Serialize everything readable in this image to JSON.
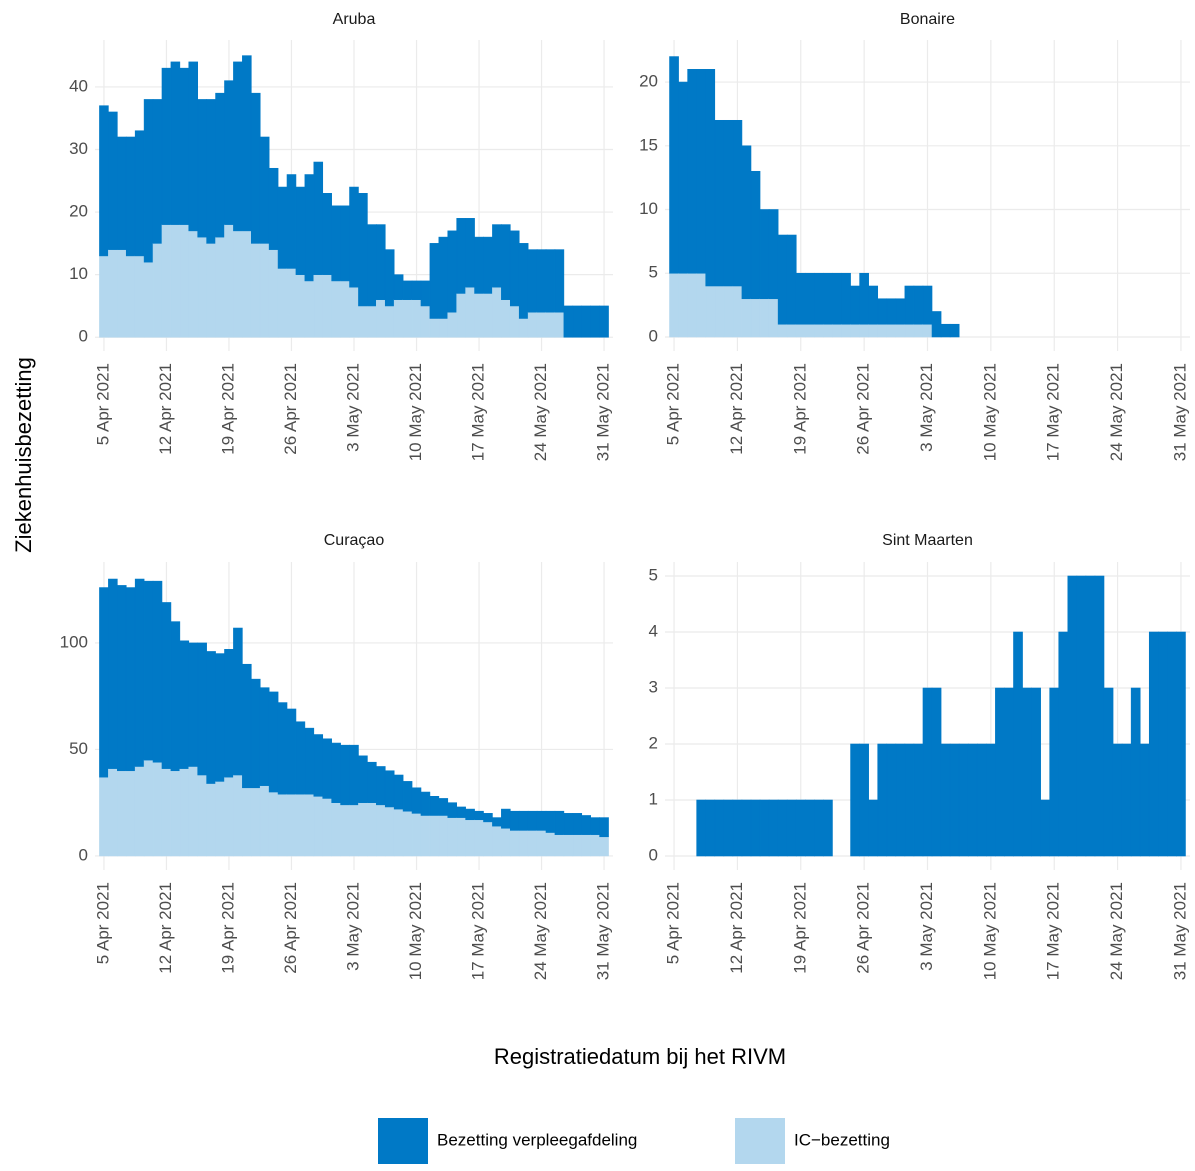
{
  "y_label": "Ziekenhuisbezetting",
  "x_label": "Registratiedatum bij het RIVM",
  "chart_data": [
    {
      "type": "bar",
      "stacked": true,
      "title": "Aruba",
      "grid": true,
      "x": [
        "2021-04-05",
        "2021-04-06",
        "2021-04-07",
        "2021-04-08",
        "2021-04-09",
        "2021-04-10",
        "2021-04-11",
        "2021-04-12",
        "2021-04-13",
        "2021-04-14",
        "2021-04-15",
        "2021-04-16",
        "2021-04-17",
        "2021-04-18",
        "2021-04-19",
        "2021-04-20",
        "2021-04-21",
        "2021-04-22",
        "2021-04-23",
        "2021-04-24",
        "2021-04-25",
        "2021-04-26",
        "2021-04-27",
        "2021-04-28",
        "2021-04-29",
        "2021-04-30",
        "2021-05-01",
        "2021-05-02",
        "2021-05-03",
        "2021-05-04",
        "2021-05-05",
        "2021-05-06",
        "2021-05-07",
        "2021-05-08",
        "2021-05-09",
        "2021-05-10",
        "2021-05-11",
        "2021-05-12",
        "2021-05-13",
        "2021-05-14",
        "2021-05-15",
        "2021-05-16",
        "2021-05-17",
        "2021-05-18",
        "2021-05-19",
        "2021-05-20",
        "2021-05-21",
        "2021-05-22",
        "2021-05-23",
        "2021-05-24",
        "2021-05-25",
        "2021-05-26",
        "2021-05-27",
        "2021-05-28",
        "2021-05-29",
        "2021-05-30",
        "2021-05-31"
      ],
      "xlim": [
        "2021-04-04",
        "2021-06-01"
      ],
      "xticks": [
        {
          "value": "2021-04-05",
          "label": "5 Apr 2021"
        },
        {
          "value": "2021-04-12",
          "label": "12 Apr 2021"
        },
        {
          "value": "2021-04-19",
          "label": "19 Apr 2021"
        },
        {
          "value": "2021-04-26",
          "label": "26 Apr 2021"
        },
        {
          "value": "2021-05-03",
          "label": "3 May 2021"
        },
        {
          "value": "2021-05-10",
          "label": "10 May 2021"
        },
        {
          "value": "2021-05-17",
          "label": "17 May 2021"
        },
        {
          "value": "2021-05-24",
          "label": "24 May 2021"
        },
        {
          "value": "2021-05-31",
          "label": "31 May 2021"
        }
      ],
      "ylim": [
        -2.2,
        47.5
      ],
      "yticks": [
        0,
        10,
        20,
        30,
        40
      ],
      "series": [
        {
          "name": "IC−bezetting",
          "color": "#b3d7ee",
          "values": [
            13,
            14,
            14,
            13,
            13,
            12,
            15,
            18,
            18,
            18,
            17,
            16,
            15,
            16,
            18,
            17,
            17,
            15,
            15,
            14,
            11,
            11,
            10,
            9,
            10,
            10,
            9,
            9,
            8,
            5,
            5,
            6,
            5,
            6,
            6,
            6,
            5,
            3,
            3,
            4,
            7,
            8,
            7,
            7,
            8,
            6,
            5,
            3,
            4,
            4,
            4,
            4,
            0,
            0,
            0,
            0,
            0
          ]
        },
        {
          "name": "Bezetting verpleegafdeling",
          "color": "#0079c6",
          "values": [
            24,
            22,
            18,
            19,
            20,
            26,
            23,
            25,
            26,
            25,
            27,
            22,
            23,
            23,
            23,
            27,
            28,
            24,
            17,
            13,
            13,
            15,
            14,
            17,
            18,
            13,
            12,
            12,
            16,
            18,
            13,
            12,
            9,
            4,
            3,
            3,
            4,
            12,
            13,
            13,
            12,
            11,
            9,
            9,
            10,
            12,
            12,
            12,
            10,
            10,
            10,
            10,
            5,
            5,
            5,
            5,
            5
          ]
        }
      ]
    },
    {
      "type": "bar",
      "stacked": true,
      "title": "Bonaire",
      "grid": true,
      "x": [
        "2021-04-05",
        "2021-04-06",
        "2021-04-07",
        "2021-04-08",
        "2021-04-09",
        "2021-04-10",
        "2021-04-11",
        "2021-04-12",
        "2021-04-13",
        "2021-04-14",
        "2021-04-15",
        "2021-04-16",
        "2021-04-17",
        "2021-04-18",
        "2021-04-19",
        "2021-04-20",
        "2021-04-21",
        "2021-04-22",
        "2021-04-23",
        "2021-04-24",
        "2021-04-25",
        "2021-04-26",
        "2021-04-27",
        "2021-04-28",
        "2021-04-29",
        "2021-04-30",
        "2021-05-01",
        "2021-05-02",
        "2021-05-03",
        "2021-05-04",
        "2021-05-05",
        "2021-05-06",
        "2021-05-07",
        "2021-05-08",
        "2021-05-09",
        "2021-05-10",
        "2021-05-11",
        "2021-05-12",
        "2021-05-13",
        "2021-05-14",
        "2021-05-15",
        "2021-05-16",
        "2021-05-17",
        "2021-05-18",
        "2021-05-19",
        "2021-05-20",
        "2021-05-21",
        "2021-05-22",
        "2021-05-23",
        "2021-05-24",
        "2021-05-25",
        "2021-05-26",
        "2021-05-27",
        "2021-05-28",
        "2021-05-29",
        "2021-05-30",
        "2021-05-31"
      ],
      "xlim": [
        "2021-04-04",
        "2021-06-01"
      ],
      "xticks": [
        {
          "value": "2021-04-05",
          "label": "5 Apr 2021"
        },
        {
          "value": "2021-04-12",
          "label": "12 Apr 2021"
        },
        {
          "value": "2021-04-19",
          "label": "19 Apr 2021"
        },
        {
          "value": "2021-04-26",
          "label": "26 Apr 2021"
        },
        {
          "value": "2021-05-03",
          "label": "3 May 2021"
        },
        {
          "value": "2021-05-10",
          "label": "10 May 2021"
        },
        {
          "value": "2021-05-17",
          "label": "17 May 2021"
        },
        {
          "value": "2021-05-24",
          "label": "24 May 2021"
        },
        {
          "value": "2021-05-31",
          "label": "31 May 2021"
        }
      ],
      "ylim": [
        -1.1,
        23.3
      ],
      "yticks": [
        0,
        5,
        10,
        15,
        20
      ],
      "series": [
        {
          "name": "IC−bezetting",
          "color": "#b3d7ee",
          "values": [
            5,
            5,
            5,
            5,
            4,
            4,
            4,
            4,
            3,
            3,
            3,
            3,
            1,
            1,
            1,
            1,
            1,
            1,
            1,
            1,
            1,
            1,
            1,
            1,
            1,
            1,
            1,
            1,
            1,
            0,
            0,
            0,
            0,
            0,
            0,
            0,
            0,
            0,
            0,
            0,
            0,
            0,
            0,
            0,
            0,
            0,
            0,
            0,
            0,
            0,
            0,
            0,
            0,
            0,
            0,
            0,
            0
          ]
        },
        {
          "name": "Bezetting verpleegafdeling",
          "color": "#0079c6",
          "values": [
            17,
            15,
            16,
            16,
            17,
            13,
            13,
            13,
            12,
            10,
            7,
            7,
            7,
            7,
            4,
            4,
            4,
            4,
            4,
            4,
            3,
            4,
            3,
            2,
            2,
            2,
            3,
            3,
            3,
            2,
            1,
            1,
            0,
            0,
            0,
            0,
            0,
            0,
            0,
            0,
            0,
            0,
            0,
            0,
            0,
            0,
            0,
            0,
            0,
            0,
            0,
            0,
            0,
            0,
            0,
            0,
            0
          ]
        }
      ]
    },
    {
      "type": "bar",
      "stacked": true,
      "title": "Curaçao",
      "grid": true,
      "x": [
        "2021-04-05",
        "2021-04-06",
        "2021-04-07",
        "2021-04-08",
        "2021-04-09",
        "2021-04-10",
        "2021-04-11",
        "2021-04-12",
        "2021-04-13",
        "2021-04-14",
        "2021-04-15",
        "2021-04-16",
        "2021-04-17",
        "2021-04-18",
        "2021-04-19",
        "2021-04-20",
        "2021-04-21",
        "2021-04-22",
        "2021-04-23",
        "2021-04-24",
        "2021-04-25",
        "2021-04-26",
        "2021-04-27",
        "2021-04-28",
        "2021-04-29",
        "2021-04-30",
        "2021-05-01",
        "2021-05-02",
        "2021-05-03",
        "2021-05-04",
        "2021-05-05",
        "2021-05-06",
        "2021-05-07",
        "2021-05-08",
        "2021-05-09",
        "2021-05-10",
        "2021-05-11",
        "2021-05-12",
        "2021-05-13",
        "2021-05-14",
        "2021-05-15",
        "2021-05-16",
        "2021-05-17",
        "2021-05-18",
        "2021-05-19",
        "2021-05-20",
        "2021-05-21",
        "2021-05-22",
        "2021-05-23",
        "2021-05-24",
        "2021-05-25",
        "2021-05-26",
        "2021-05-27",
        "2021-05-28",
        "2021-05-29",
        "2021-05-30",
        "2021-05-31"
      ],
      "xlim": [
        "2021-04-04",
        "2021-06-01"
      ],
      "xticks": [
        {
          "value": "2021-04-05",
          "label": "5 Apr 2021"
        },
        {
          "value": "2021-04-12",
          "label": "12 Apr 2021"
        },
        {
          "value": "2021-04-19",
          "label": "19 Apr 2021"
        },
        {
          "value": "2021-04-26",
          "label": "26 Apr 2021"
        },
        {
          "value": "2021-05-03",
          "label": "3 May 2021"
        },
        {
          "value": "2021-05-10",
          "label": "10 May 2021"
        },
        {
          "value": "2021-05-17",
          "label": "17 May 2021"
        },
        {
          "value": "2021-05-24",
          "label": "24 May 2021"
        },
        {
          "value": "2021-05-31",
          "label": "31 May 2021"
        }
      ],
      "ylim": [
        -6.6,
        138
      ],
      "yticks": [
        0,
        50,
        100
      ],
      "series": [
        {
          "name": "IC−bezetting",
          "color": "#b3d7ee",
          "values": [
            37,
            41,
            40,
            40,
            42,
            45,
            44,
            41,
            40,
            41,
            42,
            38,
            34,
            35,
            37,
            38,
            32,
            32,
            33,
            30,
            29,
            29,
            29,
            29,
            28,
            27,
            25,
            24,
            24,
            25,
            25,
            24,
            23,
            22,
            21,
            20,
            19,
            19,
            19,
            18,
            18,
            17,
            17,
            16,
            14,
            13,
            12,
            12,
            12,
            12,
            11,
            10,
            10,
            10,
            10,
            10,
            9
          ]
        },
        {
          "name": "Bezetting verpleegafdeling",
          "color": "#0079c6",
          "values": [
            89,
            89,
            87,
            86,
            88,
            84,
            85,
            78,
            70,
            60,
            58,
            62,
            62,
            60,
            60,
            69,
            58,
            51,
            46,
            47,
            43,
            40,
            34,
            31,
            29,
            28,
            28,
            28,
            28,
            22,
            19,
            18,
            17,
            16,
            14,
            12,
            11,
            9,
            8,
            7,
            5,
            5,
            4,
            4,
            4,
            9,
            9,
            9,
            9,
            9,
            10,
            11,
            10,
            10,
            9,
            8,
            9
          ]
        }
      ]
    },
    {
      "type": "bar",
      "stacked": true,
      "title": "Sint Maarten",
      "grid": true,
      "x": [
        "2021-04-05",
        "2021-04-06",
        "2021-04-07",
        "2021-04-08",
        "2021-04-09",
        "2021-04-10",
        "2021-04-11",
        "2021-04-12",
        "2021-04-13",
        "2021-04-14",
        "2021-04-15",
        "2021-04-16",
        "2021-04-17",
        "2021-04-18",
        "2021-04-19",
        "2021-04-20",
        "2021-04-21",
        "2021-04-22",
        "2021-04-23",
        "2021-04-24",
        "2021-04-25",
        "2021-04-26",
        "2021-04-27",
        "2021-04-28",
        "2021-04-29",
        "2021-04-30",
        "2021-05-01",
        "2021-05-02",
        "2021-05-03",
        "2021-05-04",
        "2021-05-05",
        "2021-05-06",
        "2021-05-07",
        "2021-05-08",
        "2021-05-09",
        "2021-05-10",
        "2021-05-11",
        "2021-05-12",
        "2021-05-13",
        "2021-05-14",
        "2021-05-15",
        "2021-05-16",
        "2021-05-17",
        "2021-05-18",
        "2021-05-19",
        "2021-05-20",
        "2021-05-21",
        "2021-05-22",
        "2021-05-23",
        "2021-05-24",
        "2021-05-25",
        "2021-05-26",
        "2021-05-27",
        "2021-05-28",
        "2021-05-29",
        "2021-05-30",
        "2021-05-31"
      ],
      "xlim": [
        "2021-04-04",
        "2021-06-01"
      ],
      "xticks": [
        {
          "value": "2021-04-05",
          "label": "5 Apr 2021"
        },
        {
          "value": "2021-04-12",
          "label": "12 Apr 2021"
        },
        {
          "value": "2021-04-19",
          "label": "19 Apr 2021"
        },
        {
          "value": "2021-04-26",
          "label": "26 Apr 2021"
        },
        {
          "value": "2021-05-03",
          "label": "3 May 2021"
        },
        {
          "value": "2021-05-10",
          "label": "10 May 2021"
        },
        {
          "value": "2021-05-17",
          "label": "17 May 2021"
        },
        {
          "value": "2021-05-24",
          "label": "24 May 2021"
        },
        {
          "value": "2021-05-31",
          "label": "31 May 2021"
        }
      ],
      "ylim": [
        -0.25,
        5.25
      ],
      "yticks": [
        0,
        1,
        2,
        3,
        4,
        5
      ],
      "series": [
        {
          "name": "IC−bezetting",
          "color": "#b3d7ee",
          "values": [
            0,
            0,
            0,
            0,
            0,
            0,
            0,
            0,
            0,
            0,
            0,
            0,
            0,
            0,
            0,
            0,
            0,
            0,
            0,
            0,
            0,
            0,
            0,
            0,
            0,
            0,
            0,
            0,
            0,
            0,
            0,
            0,
            0,
            0,
            0,
            0,
            0,
            0,
            0,
            0,
            0,
            0,
            0,
            0,
            0,
            0,
            0,
            0,
            0,
            0,
            0,
            0,
            0,
            0,
            0,
            0,
            0
          ]
        },
        {
          "name": "Bezetting verpleegafdeling",
          "color": "#0079c6",
          "values": [
            0,
            0,
            0,
            1,
            1,
            1,
            1,
            1,
            1,
            1,
            1,
            1,
            1,
            1,
            1,
            1,
            1,
            1,
            0,
            0,
            2,
            2,
            1,
            2,
            2,
            2,
            2,
            2,
            3,
            3,
            2,
            2,
            2,
            2,
            2,
            2,
            3,
            3,
            4,
            3,
            3,
            1,
            3,
            4,
            5,
            5,
            5,
            5,
            3,
            2,
            2,
            3,
            2,
            4,
            4,
            4,
            4
          ]
        }
      ]
    }
  ]
}
